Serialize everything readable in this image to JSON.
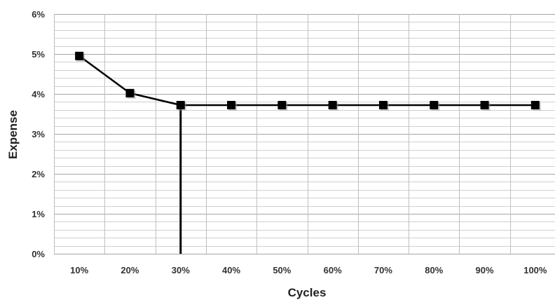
{
  "chart_data": {
    "type": "line",
    "xlabel": "Cycles",
    "ylabel": "Expense",
    "categories": [
      "10%",
      "20%",
      "30%",
      "40%",
      "50%",
      "60%",
      "70%",
      "80%",
      "90%",
      "100%"
    ],
    "series": [
      {
        "values": [
          4.95,
          4.02,
          3.72,
          3.72,
          3.72,
          3.72,
          3.72,
          3.72,
          3.72,
          3.72
        ],
        "color": "#000000",
        "marker": "square"
      }
    ],
    "y_ticks": [
      {
        "value": 0,
        "label": "0%"
      },
      {
        "value": 1,
        "label": "1%"
      },
      {
        "value": 2,
        "label": "2%"
      },
      {
        "value": 3,
        "label": "3%"
      },
      {
        "value": 4,
        "label": "4%"
      },
      {
        "value": 5,
        "label": "5%"
      },
      {
        "value": 6,
        "label": "6%"
      }
    ],
    "ylim": [
      0,
      6
    ],
    "minor_grid_step": 0.2,
    "grid": true,
    "legend": "none",
    "reference_line": {
      "category": "30%",
      "from": 0,
      "to": 3.72
    }
  }
}
